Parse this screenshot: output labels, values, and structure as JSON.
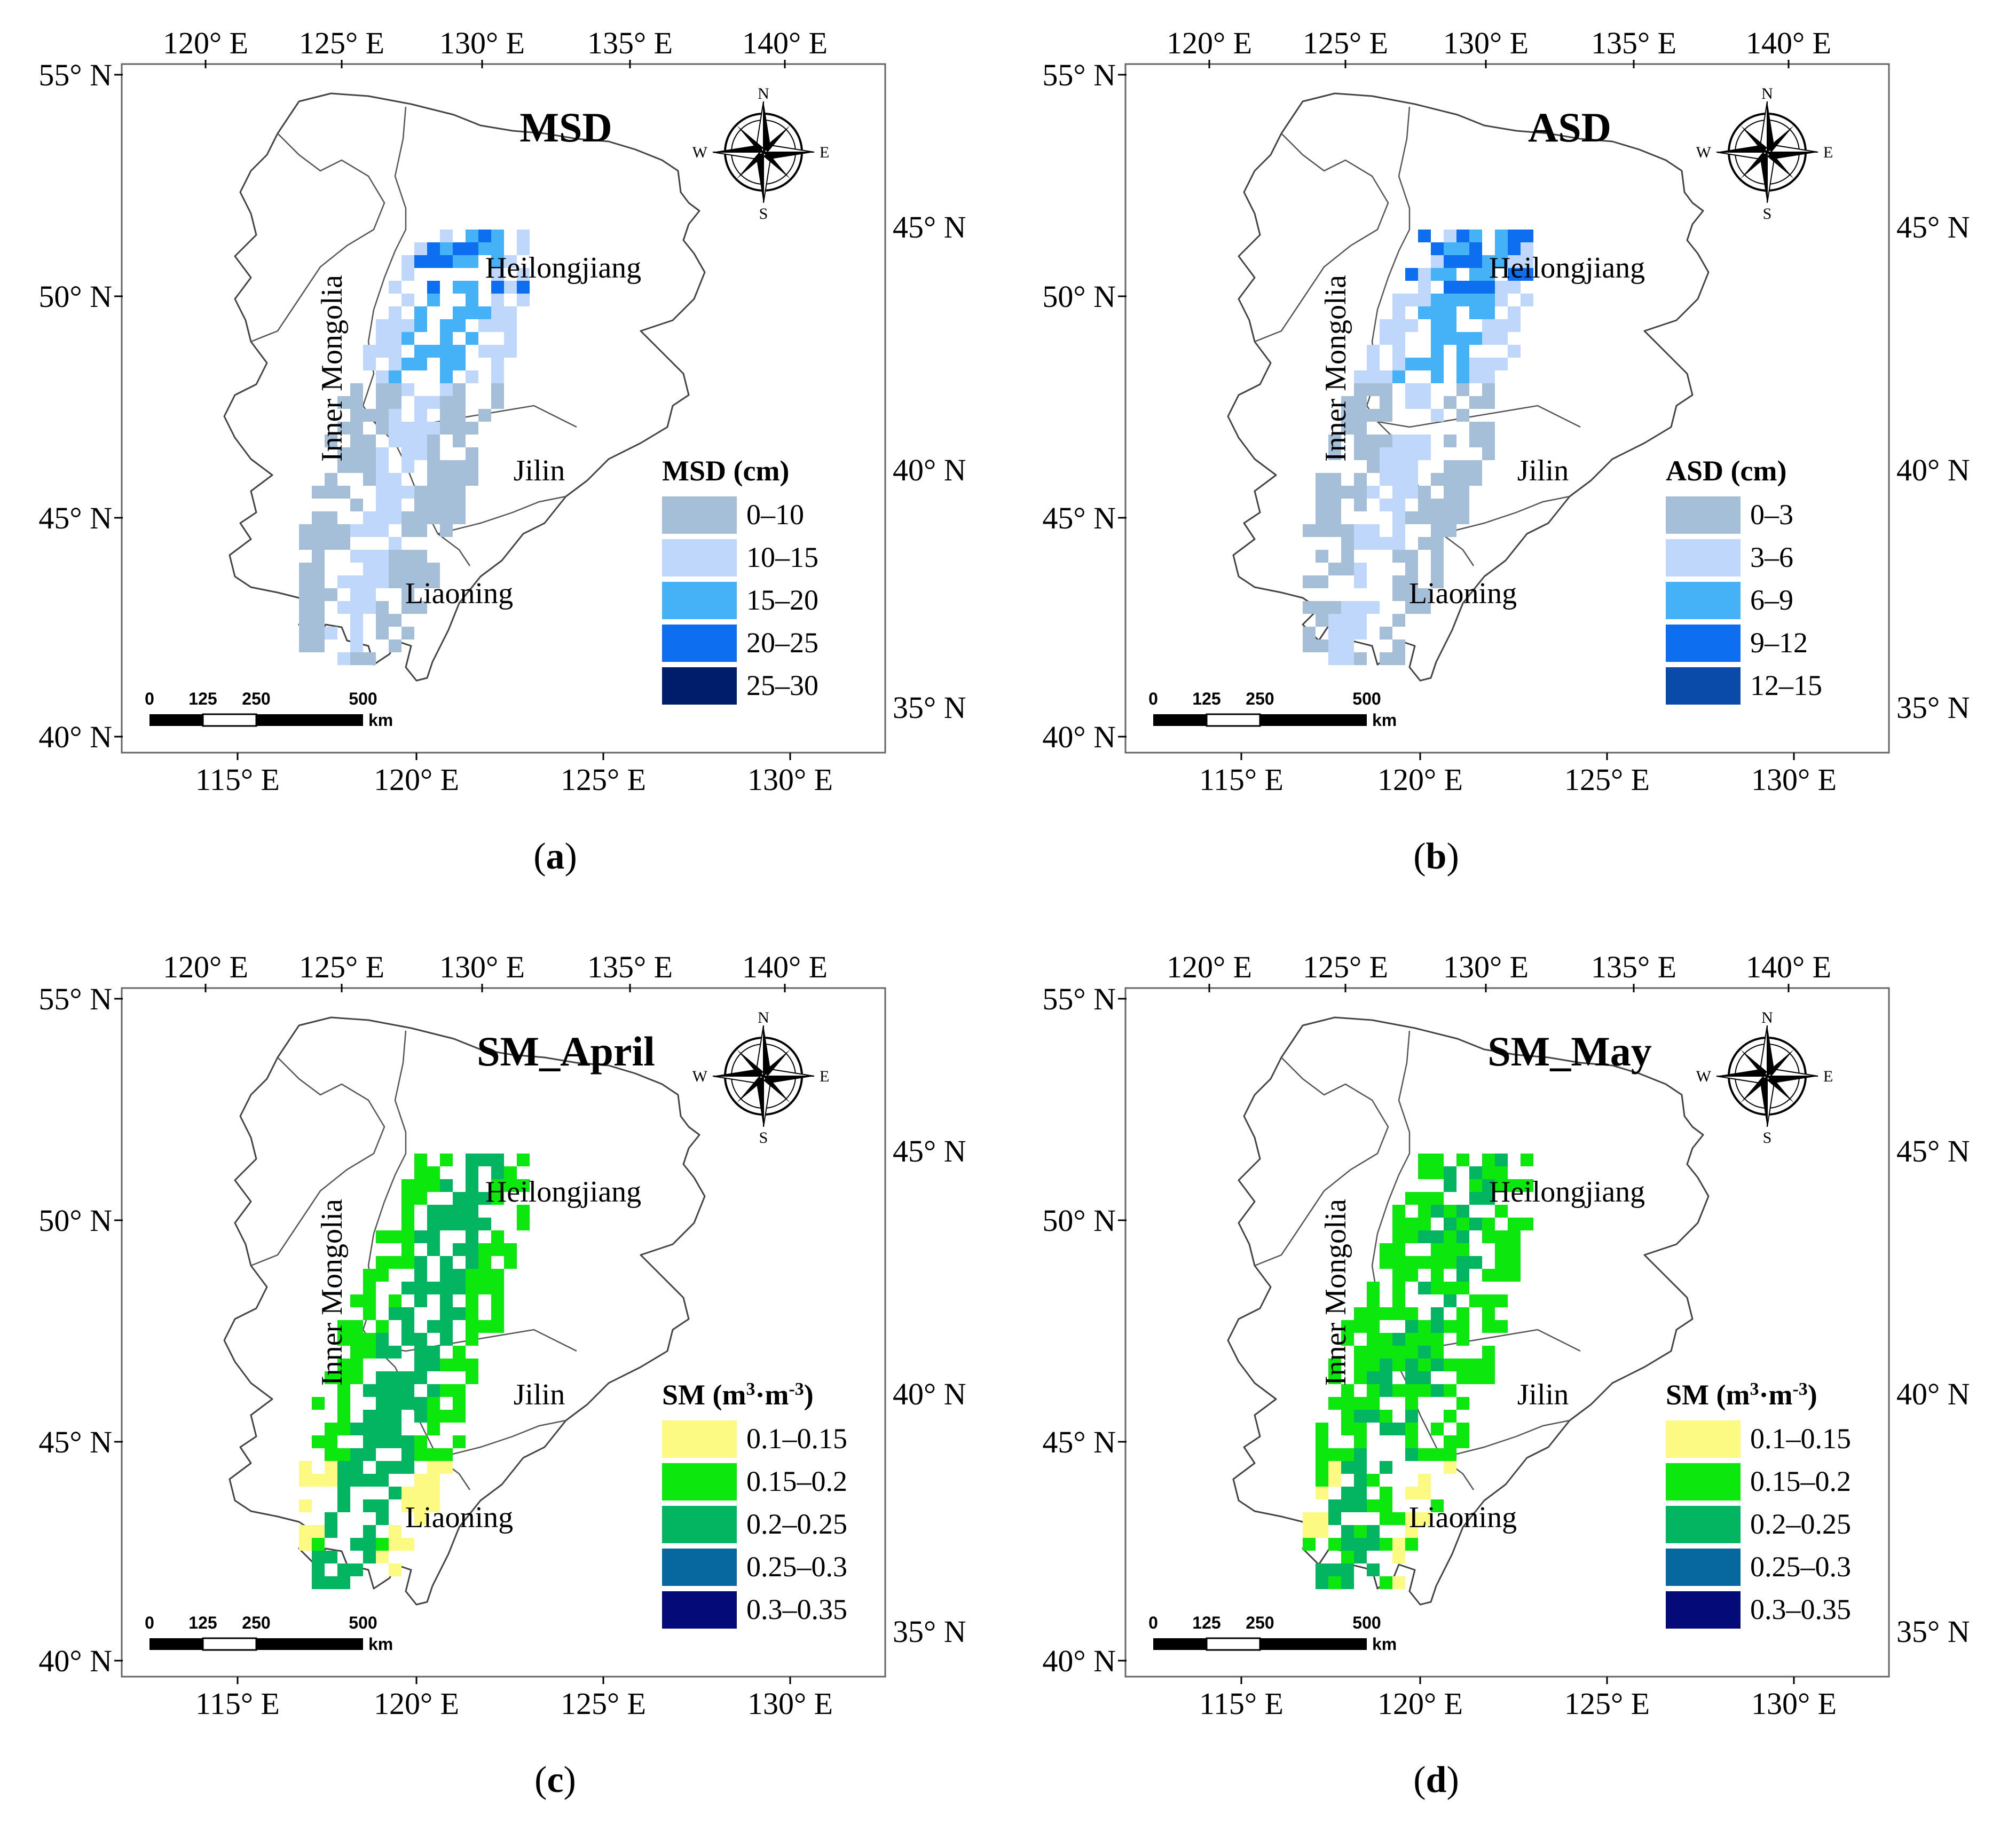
{
  "figure": {
    "top_lon_ticks": [
      "120° E",
      "125° E",
      "130° E",
      "135° E",
      "140° E"
    ],
    "bottom_lon_ticks": [
      "115° E",
      "120° E",
      "125° E",
      "130° E"
    ],
    "left_lat_ticks": [
      "55° N",
      "50° N",
      "45° N",
      "40° N"
    ],
    "right_lat_ticks": [
      "45° N",
      "40° N",
      "35° N"
    ],
    "provinces": [
      "Heilongjiang",
      "Inner Mongolia",
      "Jilin",
      "Liaoning"
    ],
    "compass": {
      "n": "N",
      "s": "S",
      "e": "E",
      "w": "W"
    },
    "scalebar": {
      "labels": [
        "0",
        "125",
        "250",
        "500"
      ],
      "unit": "km"
    }
  },
  "panels": [
    {
      "caption": "a",
      "title": "MSD",
      "legend": {
        "title": "MSD (cm)",
        "classes": [
          {
            "label": "0–10",
            "color": "#a6bfd9"
          },
          {
            "label": "10–15",
            "color": "#bfd7fb"
          },
          {
            "label": "15–20",
            "color": "#45b2f8"
          },
          {
            "label": "20–25",
            "color": "#0d6ef0"
          },
          {
            "label": "25–30",
            "color": "#001d6c"
          }
        ]
      }
    },
    {
      "caption": "b",
      "title": "ASD",
      "legend": {
        "title": "ASD (cm)",
        "classes": [
          {
            "label": "0–3",
            "color": "#a6bfd9"
          },
          {
            "label": "3–6",
            "color": "#bfd7fb"
          },
          {
            "label": "6–9",
            "color": "#45b2f8"
          },
          {
            "label": "9–12",
            "color": "#0d6ef0"
          },
          {
            "label": "12–15",
            "color": "#0a4aa8"
          }
        ]
      }
    },
    {
      "caption": "c",
      "title": "SM_April",
      "legend": {
        "title_main": "SM (m",
        "title_sup1": "3",
        "title_mid": "·m",
        "title_sup2": "-3",
        "title_end": ")",
        "classes": [
          {
            "label": "0.1–0.15",
            "color": "#fdfa83"
          },
          {
            "label": "0.15–0.2",
            "color": "#0ce70e"
          },
          {
            "label": "0.2–0.25",
            "color": "#03b561"
          },
          {
            "label": "0.25–0.3",
            "color": "#06689e"
          },
          {
            "label": "0.3–0.35",
            "color": "#040a78"
          }
        ]
      }
    },
    {
      "caption": "d",
      "title": "SM_May",
      "legend": {
        "title_main": "SM (m",
        "title_sup1": "3",
        "title_mid": "·m",
        "title_sup2": "-3",
        "title_end": ")",
        "classes": [
          {
            "label": "0.1–0.15",
            "color": "#fdfa83"
          },
          {
            "label": "0.15–0.2",
            "color": "#0ce70e"
          },
          {
            "label": "0.2–0.25",
            "color": "#03b561"
          },
          {
            "label": "0.25–0.3",
            "color": "#06689e"
          },
          {
            "label": "0.3–0.35",
            "color": "#040a78"
          }
        ]
      }
    }
  ]
}
